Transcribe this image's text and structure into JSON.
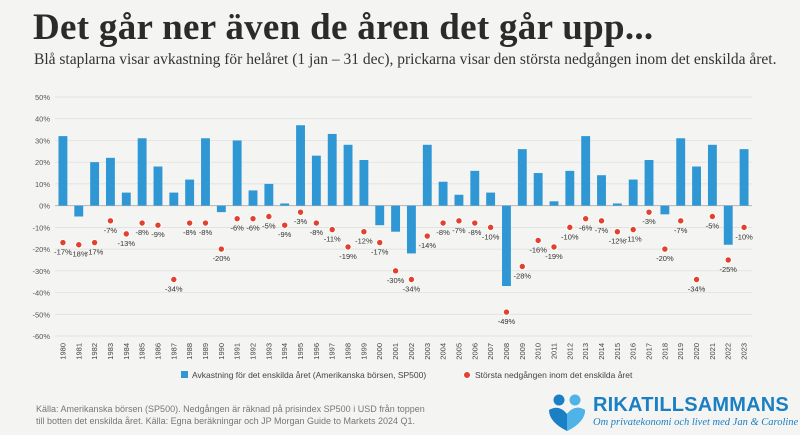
{
  "header": {
    "title": "Det går ner även de åren det går upp...",
    "subtitle": "Blå staplarna visar avkastning för helåret (1 jan – 31 dec), prickarna visar den största nedgången inom det enskilda året."
  },
  "footer": {
    "source": "Källa: Amerikanska börsen (SP500). Nedgången är räknad på prisindex SP500 i USD från toppen till botten det enskilda året. Källa: Egna beräkningar och JP Morgan Guide to Markets 2024 Q1.",
    "brand_name": "RIKATILLSAMMANS",
    "brand_tagline": "Om privatekonomi och livet med Jan & Caroline"
  },
  "colors": {
    "bar": "#2e97d4",
    "dot": "#e3402f",
    "dot_ring": "#ffffff",
    "grid": "#dcdcdc",
    "brand": "#1b7fc4"
  },
  "chart_data": {
    "type": "bar",
    "categories": [
      "1980",
      "1981",
      "1982",
      "1983",
      "1984",
      "1985",
      "1986",
      "1987",
      "1988",
      "1989",
      "1990",
      "1991",
      "1992",
      "1993",
      "1994",
      "1995",
      "1996",
      "1997",
      "1998",
      "1999",
      "2000",
      "2001",
      "2002",
      "2003",
      "2004",
      "2005",
      "2006",
      "2007",
      "2008",
      "2009",
      "2010",
      "2011",
      "2012",
      "2013",
      "2014",
      "2015",
      "2016",
      "2017",
      "2018",
      "2019",
      "2020",
      "2021",
      "2022",
      "2023"
    ],
    "series": [
      {
        "name": "Avkastning för det enskilda året (Amerikanska börsen, SP500)",
        "type": "bar",
        "values": [
          32,
          -5,
          20,
          22,
          6,
          31,
          18,
          6,
          12,
          31,
          -3,
          30,
          7,
          10,
          1,
          37,
          23,
          33,
          28,
          21,
          -9,
          -12,
          -22,
          28,
          11,
          5,
          16,
          6,
          -37,
          26,
          15,
          2,
          16,
          32,
          14,
          1,
          12,
          21,
          -4,
          31,
          18,
          28,
          -18,
          26
        ]
      },
      {
        "name": "Största nedgången inom det enskilda året",
        "type": "scatter",
        "values": [
          -17,
          -18,
          -17,
          -7,
          -13,
          -8,
          -9,
          -34,
          -8,
          -8,
          -20,
          -6,
          -6,
          -5,
          -9,
          -3,
          -8,
          -11,
          -19,
          -12,
          -17,
          -30,
          -34,
          -14,
          -8,
          -7,
          -8,
          -10,
          -49,
          -28,
          -16,
          -19,
          -10,
          -6,
          -7,
          -12,
          -11,
          -3,
          -20,
          -7,
          -34,
          -5,
          -25,
          -10
        ],
        "labels": [
          "-17%",
          "-18%",
          "-17%",
          "-7%",
          "-13%",
          "-8%",
          "-9%",
          "-34%",
          "-8%",
          "-8%",
          "-20%",
          "-6%",
          "-6%",
          "-5%",
          "-9%",
          "-3%",
          "-8%",
          "-11%",
          "-19%",
          "-12%",
          "-17%",
          "-30%",
          "-34%",
          "-14%",
          "-8%",
          "-7%",
          "-8%",
          "-10%",
          "-49%",
          "-28%",
          "-16%",
          "-19%",
          "-10%",
          "-6%",
          "-7%",
          "-12%",
          "-11%",
          "-3%",
          "-20%",
          "-7%",
          "-34%",
          "-5%",
          "-25%",
          "-10%"
        ]
      }
    ],
    "y_ticks": [
      "50%",
      "40%",
      "30%",
      "20%",
      "10%",
      "0%",
      "-10%",
      "-20%",
      "-30%",
      "-40%",
      "-50%",
      "-60%"
    ],
    "ylim": [
      -60,
      50
    ],
    "grid": true,
    "legend_position": "bottom"
  }
}
